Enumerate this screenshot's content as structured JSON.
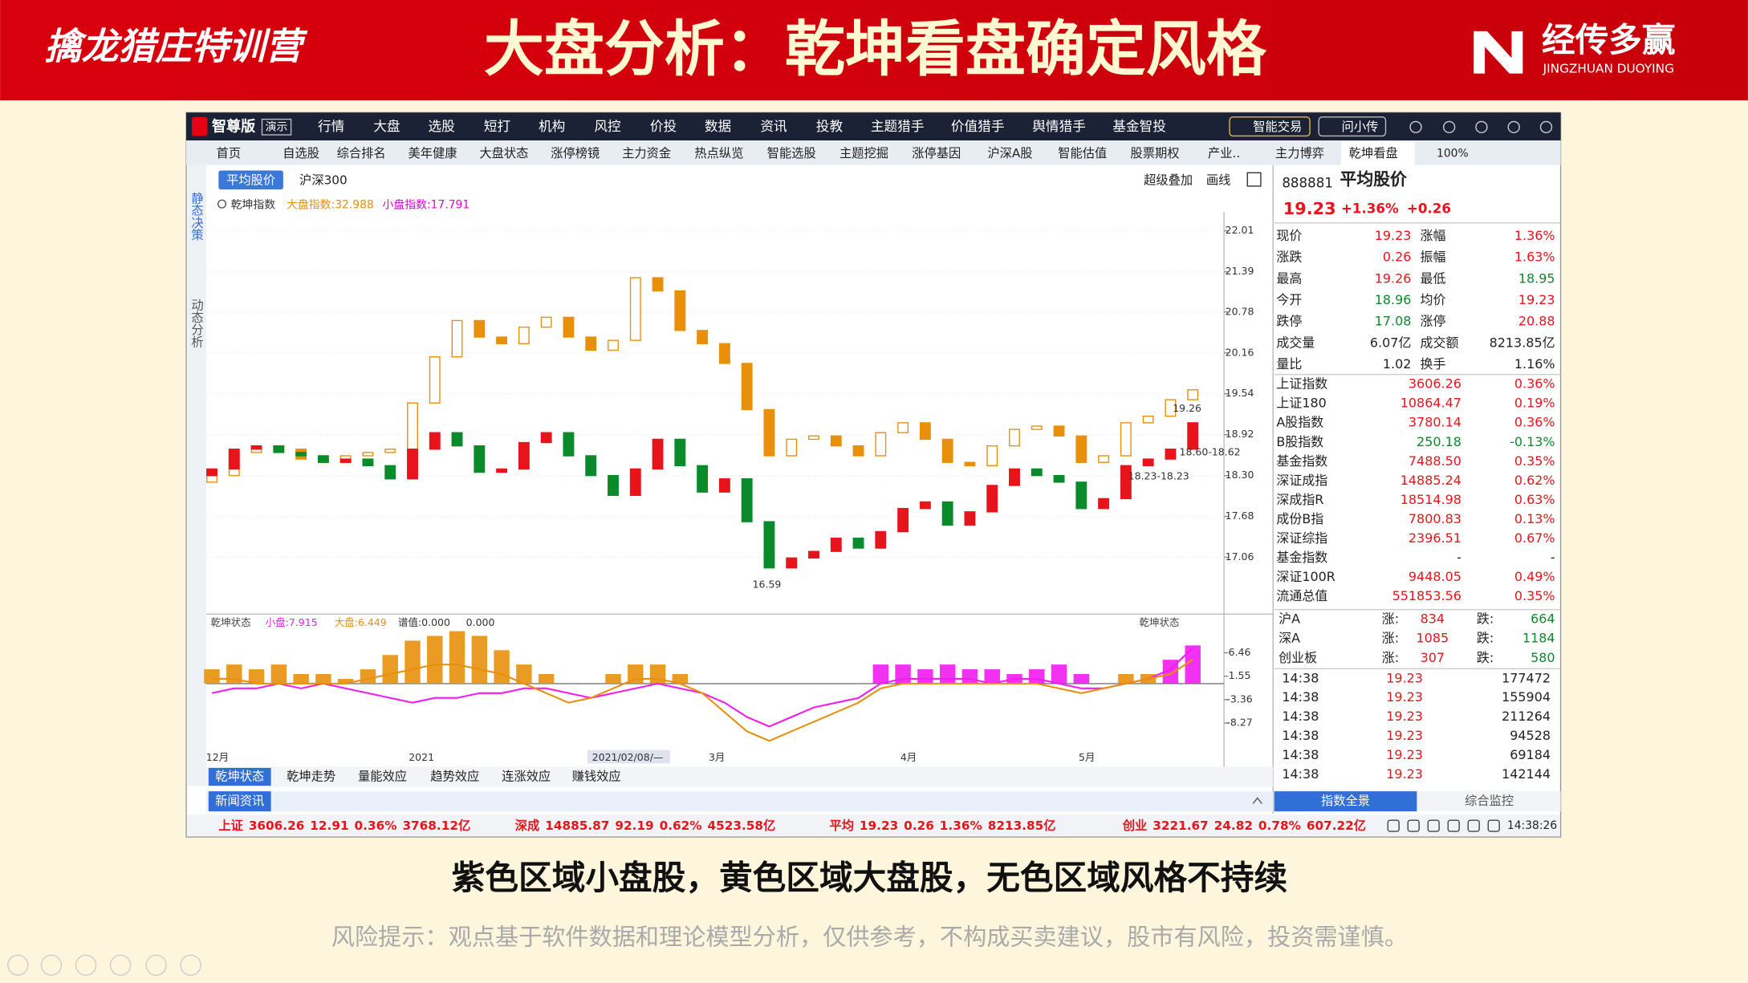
{
  "header": {
    "brand": "擒龙猎庄特训营",
    "title": "大盘分析：乾坤看盘确定风格",
    "logo": "经传多赢",
    "logo_en": "JINGZHUAN DUOYING"
  },
  "app": {
    "edition": "智尊版",
    "demo": "演示",
    "menu": [
      "行情",
      "大盘",
      "选股",
      "短打",
      "机构",
      "风控",
      "价投",
      "数据",
      "资讯",
      "投教",
      "主题猎手",
      "价值猎手",
      "舆情猎手",
      "基金智投"
    ],
    "menu_right": [
      "智能交易",
      "问小传"
    ],
    "tabs": [
      "首页",
      "自选股",
      "综合排名",
      "美年健康",
      "大盘状态",
      "涨停榜镜",
      "主力资金",
      "热点纵览",
      "智能选股",
      "主题挖掘",
      "涨停基因",
      "沪深A股",
      "智能估值",
      "股票期权",
      "产业..",
      "主力博弈",
      "乾坤看盘"
    ],
    "zoom": "100%",
    "side": [
      "静态决策",
      "动态分析"
    ],
    "bottom_tabs": [
      "乾坤状态",
      "乾坤走势",
      "量能效应",
      "趋势效应",
      "连涨效应",
      "赚钱效应"
    ],
    "news": "新闻资讯"
  },
  "chart_data": [
    {
      "type": "candlestick",
      "title": "乾坤指数",
      "tabs": [
        "平均股价",
        "沪深300"
      ],
      "tools": [
        "超级叠加",
        "画线"
      ],
      "series": [
        {
          "name": "大盘指数:32.988",
          "color": "#e8900c",
          "open": [
            18.2,
            18.3,
            18.65,
            18.75,
            18.7,
            18.55,
            18.5,
            18.6,
            18.65,
            18.7,
            19.4,
            20.1,
            20.65,
            20.4,
            20.3,
            20.55,
            20.7,
            20.4,
            20.2,
            20.35,
            21.3,
            21.1,
            20.5,
            20.3,
            20.0,
            19.3,
            18.6,
            18.85,
            18.9,
            18.75,
            18.6,
            18.95,
            19.1,
            18.85,
            18.5,
            18.45,
            18.75,
            19.0,
            19.05,
            18.9,
            18.5,
            18.6,
            19.1,
            19.2,
            19.45
          ],
          "close": [
            18.3,
            18.65,
            18.75,
            18.7,
            18.55,
            18.5,
            18.6,
            18.65,
            18.7,
            19.4,
            20.1,
            20.65,
            20.4,
            20.3,
            20.55,
            20.7,
            20.4,
            20.2,
            20.35,
            21.3,
            21.1,
            20.5,
            20.3,
            20.0,
            19.3,
            18.6,
            18.85,
            18.9,
            18.75,
            18.6,
            18.95,
            19.1,
            18.85,
            18.5,
            18.45,
            18.75,
            19.0,
            19.05,
            18.9,
            18.5,
            18.6,
            19.1,
            19.2,
            19.45,
            19.6
          ]
        },
        {
          "name": "小盘指数:17.791",
          "color": "#e000e0",
          "up_color": "#e8141b",
          "down_color": "#0a8a2a",
          "open": [
            18.3,
            18.4,
            18.7,
            18.75,
            18.65,
            18.6,
            18.5,
            18.55,
            18.45,
            18.25,
            18.7,
            18.95,
            18.75,
            18.35,
            18.4,
            18.8,
            18.95,
            18.6,
            18.3,
            18.0,
            18.4,
            18.85,
            18.45,
            18.05,
            18.25,
            17.6,
            16.9,
            17.05,
            17.15,
            17.35,
            17.2,
            17.45,
            17.8,
            17.9,
            17.55,
            17.75,
            18.15,
            18.4,
            18.3,
            18.2,
            17.8,
            17.95,
            18.45,
            18.55,
            18.7
          ],
          "close": [
            18.4,
            18.7,
            18.75,
            18.65,
            18.6,
            18.5,
            18.55,
            18.45,
            18.25,
            18.7,
            18.95,
            18.75,
            18.35,
            18.4,
            18.8,
            18.95,
            18.6,
            18.3,
            18.0,
            18.4,
            18.85,
            18.45,
            18.05,
            18.25,
            17.6,
            16.9,
            17.05,
            17.15,
            17.35,
            17.2,
            17.45,
            17.8,
            17.9,
            17.55,
            17.75,
            18.15,
            18.4,
            18.3,
            18.2,
            17.8,
            17.95,
            18.45,
            18.55,
            18.7,
            19.1
          ]
        }
      ],
      "ylim": [
        16.25,
        22.3
      ],
      "yticks": [
        22.01,
        21.39,
        20.78,
        20.16,
        19.54,
        18.92,
        {
          "value": 18.3,
          "label": "18.30"
        },
        17.68,
        17.06
      ],
      "grid": true,
      "annotations": [
        {
          "label": "19.26",
          "value": 19.26
        },
        {
          "label": "18.60-18.62",
          "value": 18.6
        },
        {
          "label": "18.23-18.23",
          "value": 18.23
        },
        {
          "label": "16.59",
          "value": 16.59
        }
      ]
    },
    {
      "type": "bar",
      "title": "乾坤状态",
      "right_title": "乾坤状态",
      "extra_labels": [
        "谱值:0.000",
        "0.000"
      ],
      "series": [
        {
          "name": "小盘:7.915",
          "color": "#f01cf0",
          "bars": [
            null,
            null,
            null,
            null,
            null,
            null,
            null,
            null,
            null,
            null,
            null,
            null,
            null,
            null,
            null,
            null,
            null,
            null,
            null,
            null,
            null,
            null,
            null,
            null,
            null,
            null,
            null,
            null,
            null,
            null,
            4,
            4,
            3,
            4,
            3,
            3,
            2,
            3,
            4,
            2,
            null,
            null,
            null,
            5,
            8
          ],
          "line": [
            -2,
            -1,
            -1,
            0,
            -1,
            0,
            -1,
            -2,
            -3,
            -4,
            -3,
            -3,
            -2,
            -2,
            -1,
            -1,
            -2,
            -3,
            -2,
            -1,
            0,
            -1,
            -2,
            -4,
            -7,
            -9,
            -7,
            -5,
            -4,
            -3,
            0,
            1,
            1,
            1,
            1,
            0,
            1,
            1,
            0,
            -1,
            -1,
            0,
            1,
            3,
            7.5
          ]
        },
        {
          "name": "大盘:6.449",
          "color": "#e8900c",
          "bars": [
            3,
            4,
            3,
            4,
            2,
            2,
            1,
            3,
            6,
            9,
            10,
            11,
            10,
            7,
            4,
            2,
            null,
            null,
            2,
            4,
            4,
            2,
            null,
            null,
            null,
            null,
            null,
            null,
            null,
            null,
            null,
            null,
            null,
            null,
            null,
            null,
            null,
            null,
            null,
            null,
            null,
            2,
            2,
            null,
            null
          ],
          "line": [
            1,
            1,
            0,
            0,
            0,
            0,
            0,
            1,
            2,
            3,
            4,
            4,
            3,
            2,
            0,
            -2,
            -4,
            -3,
            -1,
            1,
            1,
            0,
            -2,
            -6,
            -10,
            -12,
            -10,
            -8,
            -6,
            -4,
            -1,
            0,
            0,
            0,
            0,
            0,
            0,
            0,
            -1,
            -2,
            -1,
            0,
            1,
            2,
            5
          ]
        }
      ],
      "ylim": [
        -13.7,
        11.3
      ],
      "yticks": [
        6.46,
        1.55,
        -3.36,
        -8.27
      ],
      "x_labels": [
        "12月",
        "2021",
        "2021/02/08/—",
        "3月",
        "4月",
        "5月"
      ]
    }
  ],
  "quote": {
    "code": "888881",
    "name": "平均股价",
    "price": "19.23",
    "pct": "+1.36%",
    "chg": "+0.26",
    "rows": [
      [
        "现价",
        "19.23",
        "涨幅",
        "1.36%"
      ],
      [
        "涨跌",
        "0.26",
        "振幅",
        "1.63%"
      ],
      [
        "最高",
        "19.26",
        "最低",
        "18.95"
      ],
      [
        "今开",
        "18.96",
        "均价",
        "19.23"
      ],
      [
        "跌停",
        "17.08",
        "涨停",
        "20.88"
      ],
      [
        "成交量",
        "6.07亿",
        "成交额",
        "8213.85亿"
      ],
      [
        "量比",
        "1.02",
        "换手",
        "1.16%"
      ]
    ],
    "indices": [
      [
        "上证指数",
        "3606.26",
        "0.36%"
      ],
      [
        "上证180",
        "10864.47",
        "0.19%"
      ],
      [
        "A股指数",
        "3780.14",
        "0.36%"
      ],
      [
        "B股指数",
        "250.18",
        "-0.13%"
      ],
      [
        "基金指数",
        "7488.50",
        "0.35%"
      ],
      [
        "深证成指",
        "14885.24",
        "0.62%"
      ],
      [
        "深成指R",
        "18514.98",
        "0.63%"
      ],
      [
        "成份B指",
        "7800.83",
        "0.13%"
      ],
      [
        "深证综指",
        "2396.51",
        "0.67%"
      ],
      [
        "基金指数",
        "-",
        "-"
      ],
      [
        "深证100R",
        "9448.05",
        "0.49%"
      ],
      [
        "流通总值",
        "551853.56",
        "0.35%"
      ]
    ],
    "breadth": [
      [
        "沪A",
        "涨:",
        "834",
        "跌:",
        "664"
      ],
      [
        "深A",
        "涨:",
        "1085",
        "跌:",
        "1184"
      ],
      [
        "创业板",
        "涨:",
        "307",
        "跌:",
        "580"
      ]
    ],
    "ticks": [
      [
        "14:38",
        "19.23",
        "177472"
      ],
      [
        "14:38",
        "19.23",
        "155904"
      ],
      [
        "14:38",
        "19.23",
        "211264"
      ],
      [
        "14:38",
        "19.23",
        "94528"
      ],
      [
        "14:38",
        "19.23",
        "69184"
      ],
      [
        "14:38",
        "19.23",
        "142144"
      ]
    ],
    "buttons": [
      "指数全景",
      "综合监控"
    ]
  },
  "status": {
    "segments": [
      [
        "上证",
        "3606.26",
        "12.91",
        "0.36%",
        "3768.12亿"
      ],
      [
        "深成",
        "14885.87",
        "92.19",
        "0.62%",
        "4523.58亿"
      ],
      [
        "平均",
        "19.23",
        "0.26",
        "1.36%",
        "8213.85亿"
      ],
      [
        "创业",
        "3221.67",
        "24.82",
        "0.78%",
        "607.22亿"
      ]
    ],
    "time": "14:38:26"
  },
  "caption": "紫色区域小盘股，黄色区域大盘股，无色区域风格不持续",
  "risk": "风险提示：观点基于软件数据和理论模型分析，仅供参考，不构成买卖建议，股市有风险，投资需谨慎。"
}
